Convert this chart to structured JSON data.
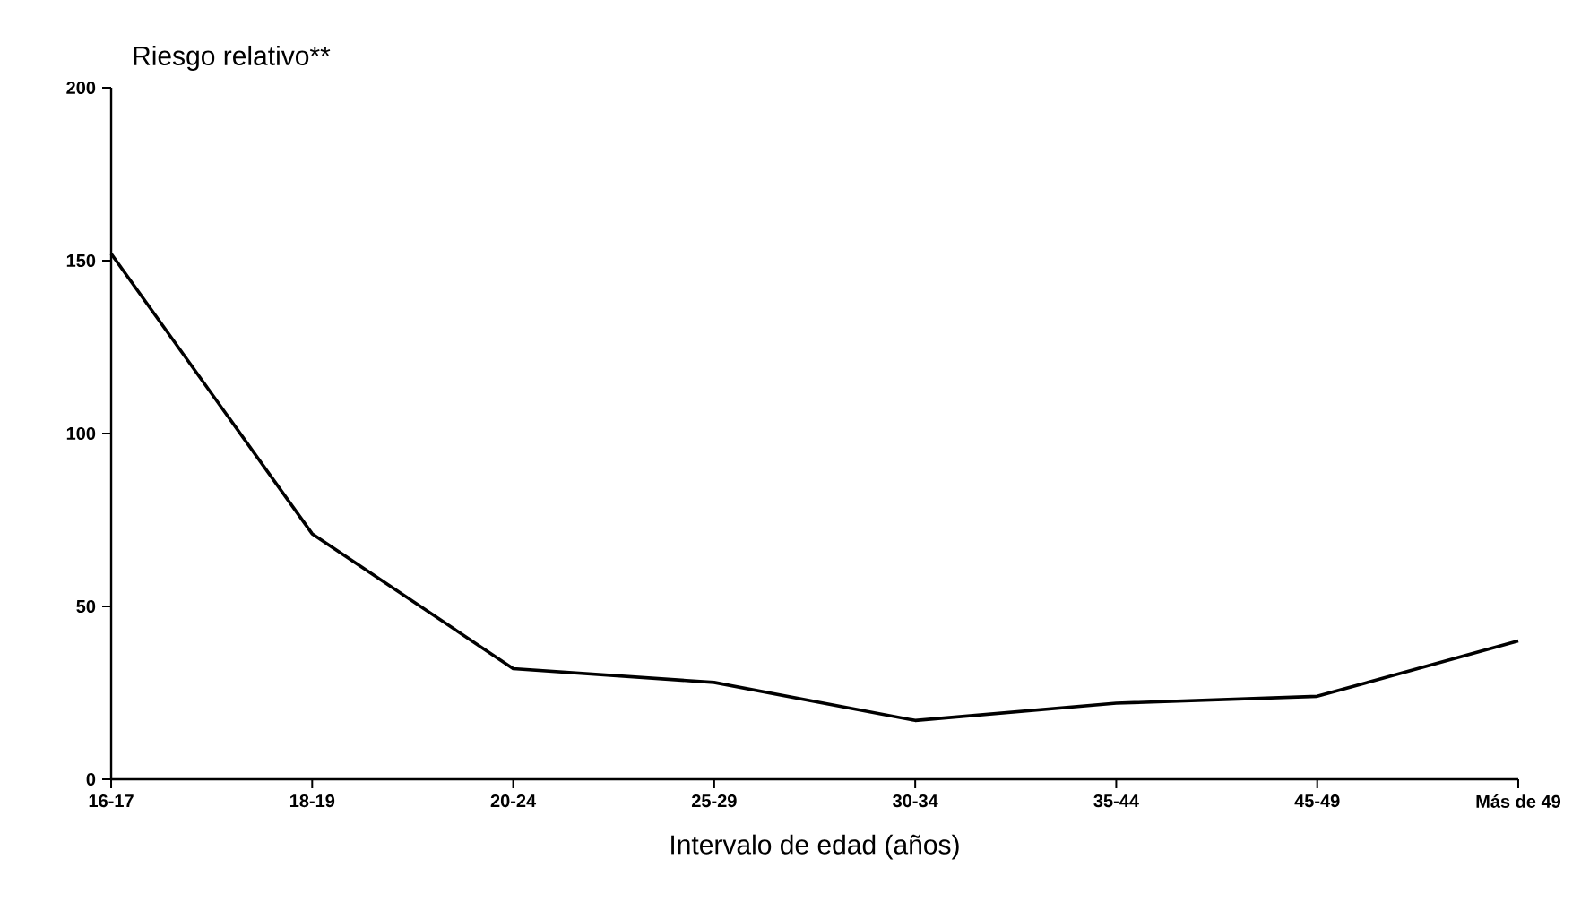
{
  "chart_data": {
    "type": "line",
    "ylabel": "Riesgo relativo**",
    "xlabel": "Intervalo de edad (años)",
    "categories": [
      "16-17",
      "18-19",
      "20-24",
      "25-29",
      "30-34",
      "35-44",
      "45-49",
      "Más de 49"
    ],
    "values": [
      152,
      71,
      32,
      28,
      17,
      22,
      24,
      40
    ],
    "color": "#000000",
    "ylim": [
      0,
      200
    ],
    "yticks": [
      0,
      50,
      100,
      150,
      200
    ],
    "grid": false,
    "marker": "none",
    "line_style": "solid"
  }
}
